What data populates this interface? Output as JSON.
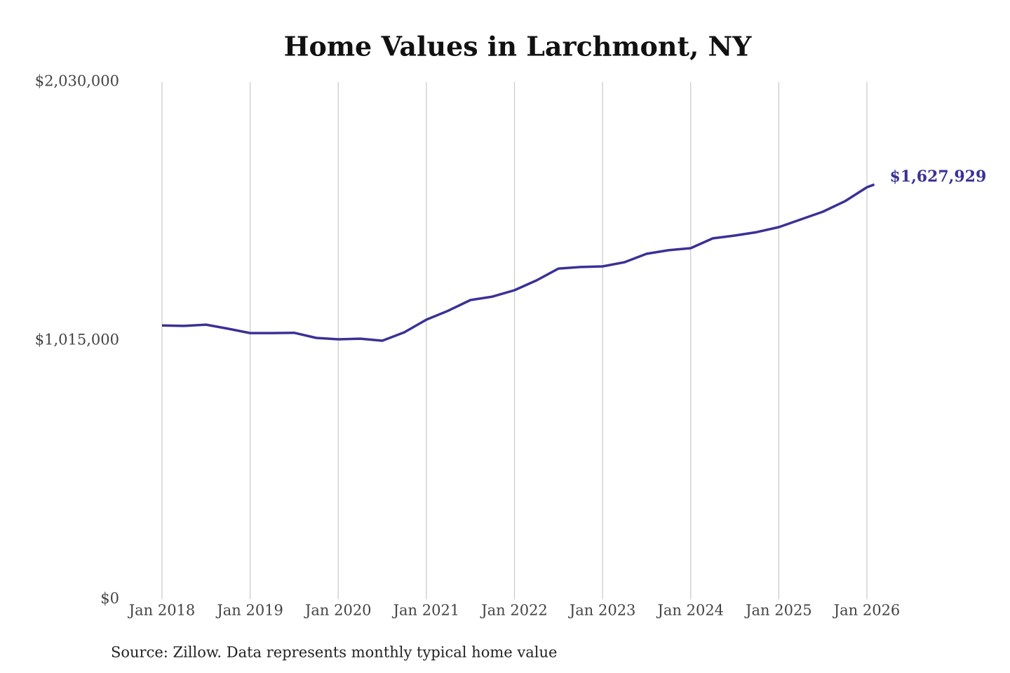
{
  "chart_data": {
    "type": "line",
    "title": "Home Values in Larchmont, NY",
    "source": "Source: Zillow. Data represents monthly typical home value",
    "x": [
      "2018-01",
      "2018-04",
      "2018-07",
      "2018-10",
      "2019-01",
      "2019-04",
      "2019-07",
      "2019-10",
      "2020-01",
      "2020-04",
      "2020-07",
      "2020-10",
      "2021-01",
      "2021-04",
      "2021-07",
      "2021-10",
      "2022-01",
      "2022-04",
      "2022-07",
      "2022-10",
      "2023-01",
      "2023-04",
      "2023-07",
      "2023-10",
      "2024-01",
      "2024-04",
      "2024-07",
      "2024-10",
      "2025-01",
      "2025-04",
      "2025-07",
      "2025-10",
      "2026-01",
      "2026-02"
    ],
    "series": [
      {
        "name": "Typical home value",
        "color": "#3a3196",
        "values": [
          1075000,
          1073000,
          1078000,
          1062000,
          1045000,
          1045000,
          1046000,
          1026000,
          1020500,
          1023000,
          1015000,
          1048000,
          1097500,
          1133000,
          1174500,
          1188000,
          1213000,
          1251500,
          1298000,
          1304000,
          1306500,
          1323000,
          1356000,
          1370000,
          1378000,
          1416600,
          1427600,
          1441000,
          1460600,
          1491000,
          1521000,
          1562000,
          1617000,
          1627929
        ],
        "value_labels": [
          null,
          null,
          null,
          null,
          null,
          null,
          null,
          null,
          null,
          null,
          null,
          null,
          null,
          null,
          null,
          null,
          null,
          null,
          null,
          null,
          null,
          null,
          null,
          null,
          null,
          null,
          null,
          null,
          null,
          null,
          null,
          null,
          null,
          "$1,627,929"
        ]
      }
    ],
    "xlim": [
      "2018-01",
      "2026-01"
    ],
    "xticks": [
      {
        "value": "2018-01",
        "label": "Jan 2018"
      },
      {
        "value": "2019-01",
        "label": "Jan 2019"
      },
      {
        "value": "2020-01",
        "label": "Jan 2020"
      },
      {
        "value": "2021-01",
        "label": "Jan 2021"
      },
      {
        "value": "2022-01",
        "label": "Jan 2022"
      },
      {
        "value": "2023-01",
        "label": "Jan 2023"
      },
      {
        "value": "2024-01",
        "label": "Jan 2024"
      },
      {
        "value": "2025-01",
        "label": "Jan 2025"
      },
      {
        "value": "2026-01",
        "label": "Jan 2026"
      }
    ],
    "ylim": [
      0,
      2030000
    ],
    "yticks": [
      {
        "value": 0,
        "label": "$0"
      },
      {
        "value": 1015000,
        "label": "$1,015,000"
      },
      {
        "value": 2030000,
        "label": "$2,030,000"
      }
    ],
    "grid": "x"
  }
}
